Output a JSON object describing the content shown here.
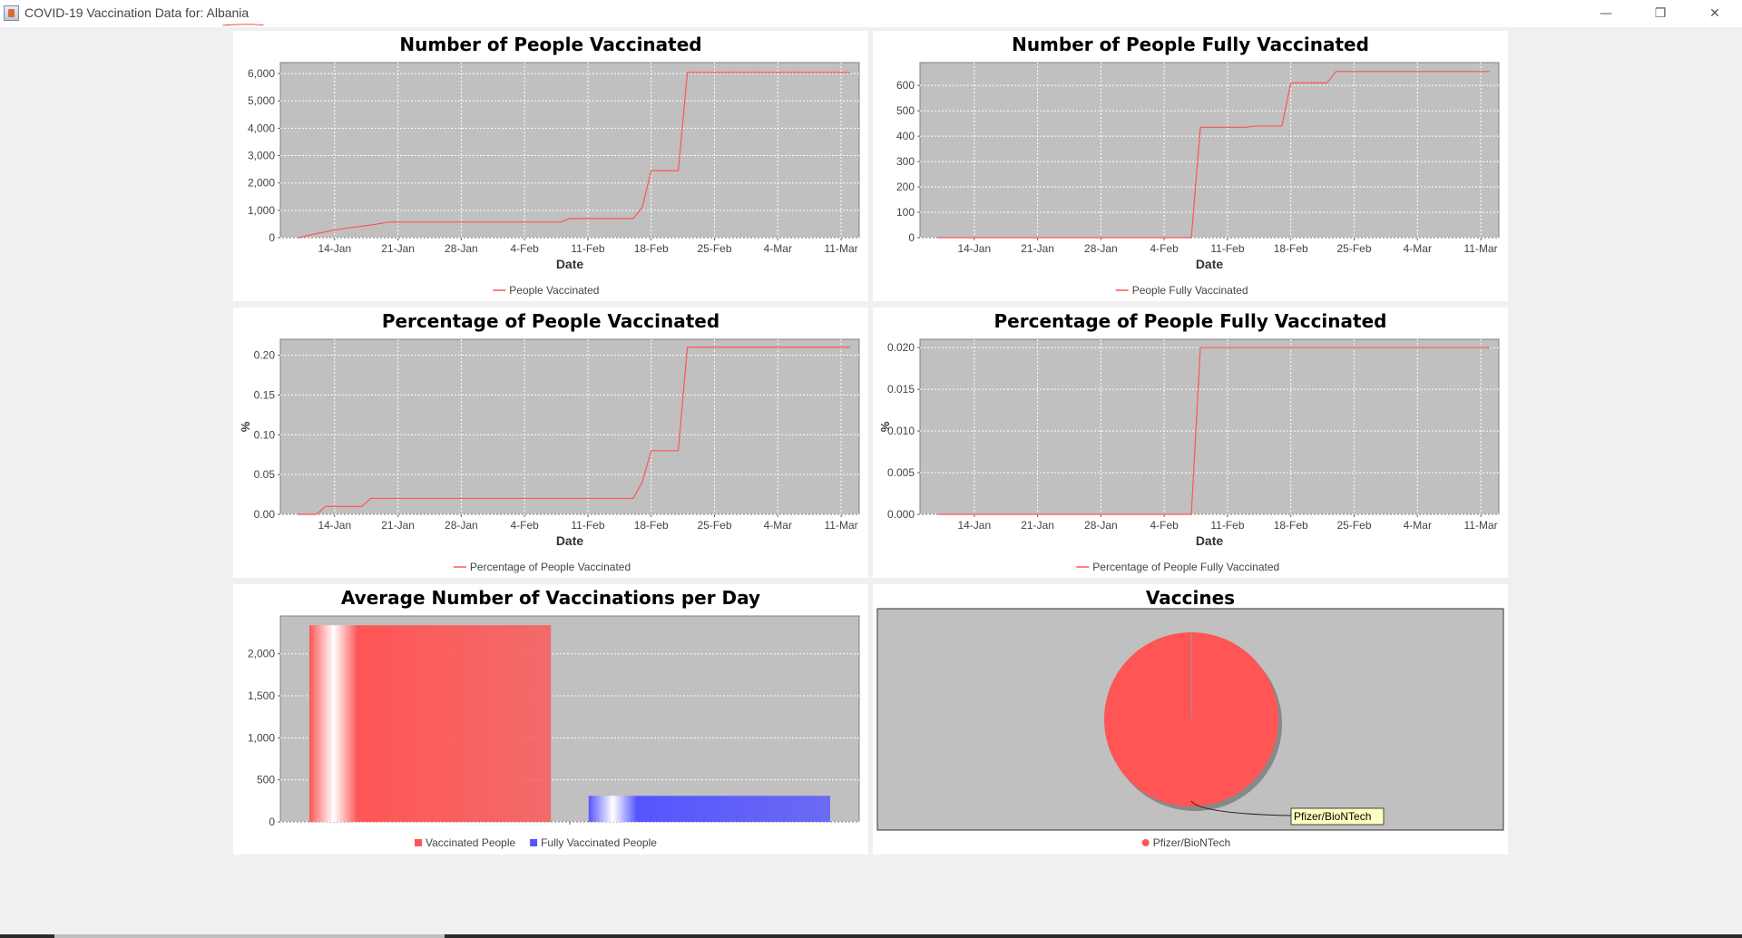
{
  "window": {
    "title_prefix": "COVID-19 Vaccination Data for: ",
    "country": "Albania",
    "controls": {
      "minimize": "—",
      "restore": "❐",
      "close": "✕"
    }
  },
  "colors": {
    "line": "#ff5555",
    "plot_bg": "#c0c0c0",
    "grid": "#ffffff",
    "bar_vaccinated": "#ff5555",
    "bar_fully": "#5555ff",
    "pie": "#ff5555",
    "tooltip_bg": "#ffffc0"
  },
  "chart_data": [
    {
      "id": "people-vaccinated",
      "type": "line",
      "title": "Number of People Vaccinated",
      "xlabel": "Date",
      "ylabel": "",
      "x_ticks": [
        "14-Jan",
        "21-Jan",
        "28-Jan",
        "4-Feb",
        "11-Feb",
        "18-Feb",
        "25-Feb",
        "4-Mar",
        "11-Mar"
      ],
      "y_ticks": [
        "0",
        "1,000",
        "2,000",
        "3,000",
        "4,000",
        "5,000",
        "6,000"
      ],
      "ylim": [
        0,
        6400
      ],
      "xlim": [
        "2021-01-08",
        "2021-03-13"
      ],
      "grid": true,
      "legend_position": "bottom",
      "series": [
        {
          "name": "People Vaccinated",
          "color": "#ff5555",
          "x": [
            "2021-01-10",
            "2021-01-12",
            "2021-01-14",
            "2021-01-16",
            "2021-01-18",
            "2021-01-20",
            "2021-02-08",
            "2021-02-09",
            "2021-02-16",
            "2021-02-17",
            "2021-02-18",
            "2021-02-21",
            "2021-02-22",
            "2021-03-12"
          ],
          "y": [
            0,
            150,
            280,
            380,
            460,
            570,
            570,
            700,
            700,
            1100,
            2450,
            2450,
            6040,
            6040
          ]
        }
      ]
    },
    {
      "id": "people-fully-vaccinated",
      "type": "line",
      "title": "Number of People Fully Vaccinated",
      "xlabel": "Date",
      "ylabel": "",
      "x_ticks": [
        "14-Jan",
        "21-Jan",
        "28-Jan",
        "4-Feb",
        "11-Feb",
        "18-Feb",
        "25-Feb",
        "4-Mar",
        "11-Mar"
      ],
      "y_ticks": [
        "0",
        "100",
        "200",
        "300",
        "400",
        "500",
        "600"
      ],
      "ylim": [
        0,
        690
      ],
      "xlim": [
        "2021-01-08",
        "2021-03-13"
      ],
      "grid": true,
      "legend_position": "bottom",
      "series": [
        {
          "name": "People Fully Vaccinated",
          "color": "#ff5555",
          "x": [
            "2021-01-10",
            "2021-02-07",
            "2021-02-08",
            "2021-02-13",
            "2021-02-14",
            "2021-02-17",
            "2021-02-18",
            "2021-02-22",
            "2021-02-23",
            "2021-03-12"
          ],
          "y": [
            0,
            0,
            435,
            435,
            440,
            440,
            610,
            610,
            655,
            655
          ]
        }
      ]
    },
    {
      "id": "percentage-vaccinated",
      "type": "line",
      "title": "Percentage of People Vaccinated",
      "xlabel": "Date",
      "ylabel": "%",
      "x_ticks": [
        "14-Jan",
        "21-Jan",
        "28-Jan",
        "4-Feb",
        "11-Feb",
        "18-Feb",
        "25-Feb",
        "4-Mar",
        "11-Mar"
      ],
      "y_ticks": [
        "0.00",
        "0.05",
        "0.10",
        "0.15",
        "0.20"
      ],
      "ylim": [
        0,
        0.22
      ],
      "xlim": [
        "2021-01-08",
        "2021-03-13"
      ],
      "grid": true,
      "legend_position": "bottom",
      "series": [
        {
          "name": "Percentage of People Vaccinated",
          "color": "#ff5555",
          "x": [
            "2021-01-10",
            "2021-01-12",
            "2021-01-13",
            "2021-01-17",
            "2021-01-18",
            "2021-02-14",
            "2021-02-16",
            "2021-02-17",
            "2021-02-18",
            "2021-02-21",
            "2021-02-22",
            "2021-03-12"
          ],
          "y": [
            0,
            0,
            0.01,
            0.01,
            0.02,
            0.02,
            0.02,
            0.04,
            0.08,
            0.08,
            0.21,
            0.21
          ]
        }
      ]
    },
    {
      "id": "percentage-fully-vaccinated",
      "type": "line",
      "title": "Percentage of People Fully Vaccinated",
      "xlabel": "Date",
      "ylabel": "%",
      "x_ticks": [
        "14-Jan",
        "21-Jan",
        "28-Jan",
        "4-Feb",
        "11-Feb",
        "18-Feb",
        "25-Feb",
        "4-Mar",
        "11-Mar"
      ],
      "y_ticks": [
        "0.000",
        "0.005",
        "0.010",
        "0.015",
        "0.020"
      ],
      "ylim": [
        0,
        0.021
      ],
      "xlim": [
        "2021-01-08",
        "2021-03-13"
      ],
      "grid": true,
      "legend_position": "bottom",
      "series": [
        {
          "name": "Percentage of People Fully Vaccinated",
          "color": "#ff5555",
          "x": [
            "2021-01-10",
            "2021-02-07",
            "2021-02-08",
            "2021-03-12"
          ],
          "y": [
            0,
            0,
            0.02,
            0.02
          ]
        }
      ]
    },
    {
      "id": "average-per-day",
      "type": "bar",
      "title": "Average Number of Vaccinations per Day",
      "xlabel": "",
      "ylabel": "",
      "y_ticks": [
        "0",
        "500",
        "1,000",
        "1,500",
        "2,000"
      ],
      "ylim": [
        0,
        2450
      ],
      "grid": true,
      "legend_position": "bottom",
      "categories": [
        ""
      ],
      "series": [
        {
          "name": "Vaccinated People",
          "color": "#ff5555",
          "values": [
            2340
          ]
        },
        {
          "name": "Fully Vaccinated People",
          "color": "#5555ff",
          "values": [
            310
          ]
        }
      ]
    },
    {
      "id": "vaccines",
      "type": "pie",
      "title": "Vaccines",
      "legend_position": "bottom",
      "labels": [
        "Pfizer/BioNTech"
      ],
      "values": [
        100
      ],
      "colors": [
        "#ff5555"
      ]
    }
  ]
}
